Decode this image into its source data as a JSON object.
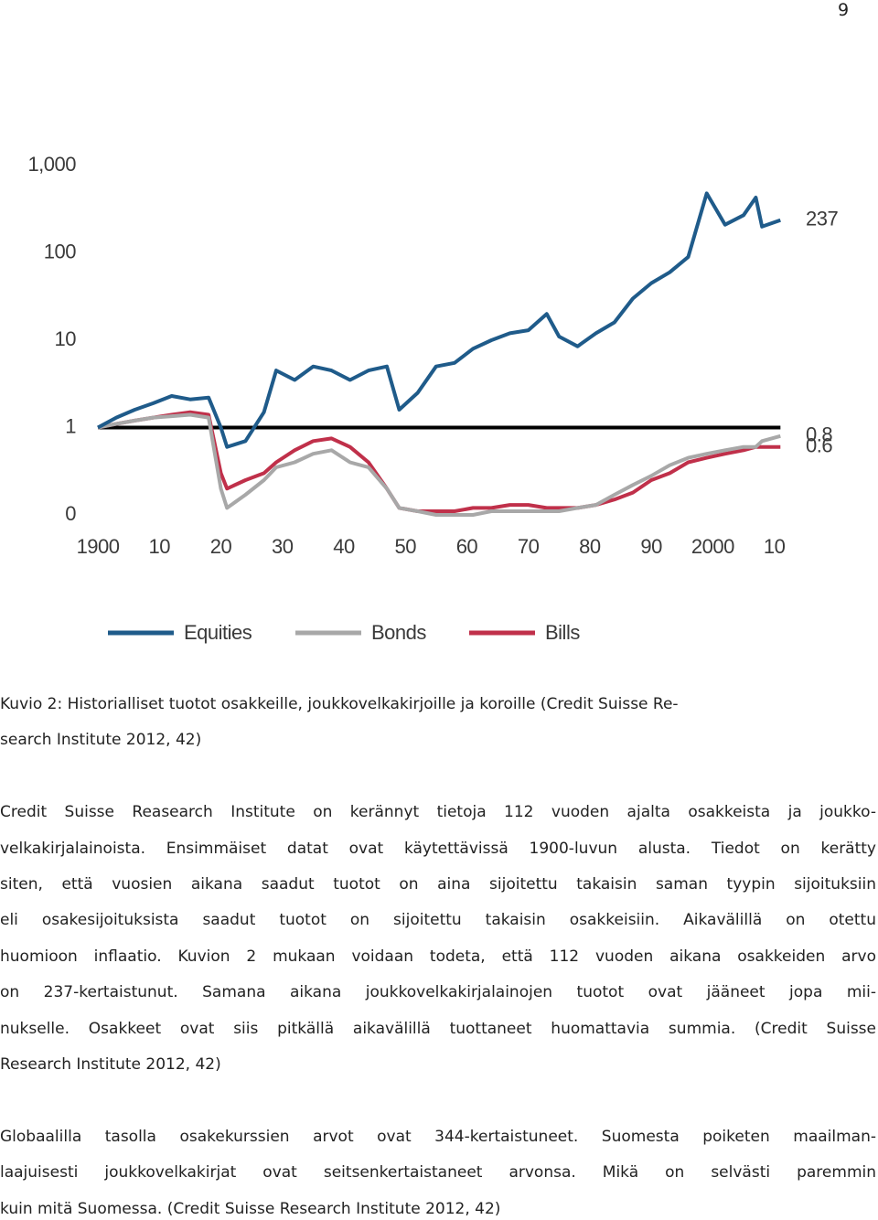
{
  "page_number": "9",
  "chart_data": {
    "type": "line",
    "log_scale": true,
    "grid": false,
    "legend": "bottom",
    "reference_line": 1,
    "x": [
      1900,
      1903,
      1906,
      1909,
      1912,
      1915,
      1918,
      1920,
      1921,
      1924,
      1927,
      1929,
      1932,
      1935,
      1938,
      1941,
      1944,
      1947,
      1949,
      1952,
      1955,
      1958,
      1961,
      1964,
      1967,
      1970,
      1973,
      1975,
      1978,
      1981,
      1984,
      1987,
      1990,
      1993,
      1996,
      1999,
      2002,
      2005,
      2007,
      2008,
      2011
    ],
    "xlim": [
      1898,
      2014
    ],
    "xticks": [
      1900,
      {
        "value": 1910,
        "label": "10"
      },
      {
        "value": 1920,
        "label": "20"
      },
      {
        "value": 1930,
        "label": "30"
      },
      {
        "value": 1940,
        "label": "40"
      },
      {
        "value": 1950,
        "label": "50"
      },
      {
        "value": 1960,
        "label": "60"
      },
      {
        "value": 1970,
        "label": "70"
      },
      {
        "value": 1980,
        "label": "80"
      },
      {
        "value": 1990,
        "label": "90"
      },
      2000,
      {
        "value": 2010,
        "label": "10"
      }
    ],
    "ylim": [
      0.1,
      1000
    ],
    "yticks": [
      {
        "value": 0.1,
        "label": "0"
      },
      1,
      10,
      100,
      {
        "value": 1000,
        "label": "1,000"
      }
    ],
    "series": [
      {
        "name": "Equities",
        "color": "#1f5b8a",
        "end_label": "237",
        "values": [
          1,
          1.3,
          1.6,
          1.9,
          2.3,
          2.1,
          2.2,
          1.0,
          0.6,
          0.7,
          1.5,
          4.5,
          3.5,
          5,
          4.5,
          3.5,
          4.5,
          5,
          1.6,
          2.5,
          5,
          5.5,
          8,
          10,
          12,
          13,
          20,
          11,
          8.5,
          12,
          16,
          30,
          45,
          60,
          90,
          480,
          210,
          270,
          430,
          200,
          237
        ]
      },
      {
        "name": "Bonds",
        "color": "#a8a8a8",
        "end_label": "0.8",
        "values": [
          1,
          1.1,
          1.2,
          1.3,
          1.35,
          1.4,
          1.3,
          0.2,
          0.12,
          0.17,
          0.25,
          0.35,
          0.4,
          0.5,
          0.55,
          0.4,
          0.35,
          0.2,
          0.12,
          0.11,
          0.1,
          0.1,
          0.1,
          0.11,
          0.11,
          0.11,
          0.11,
          0.11,
          0.12,
          0.13,
          0.17,
          0.22,
          0.28,
          0.37,
          0.45,
          0.5,
          0.55,
          0.6,
          0.6,
          0.7,
          0.8
        ]
      },
      {
        "name": "Bills",
        "color": "#c0304a",
        "end_label": "0.6",
        "values": [
          1,
          1.1,
          1.2,
          1.3,
          1.4,
          1.5,
          1.4,
          0.3,
          0.2,
          0.25,
          0.3,
          0.4,
          0.55,
          0.7,
          0.75,
          0.6,
          0.4,
          0.2,
          0.12,
          0.11,
          0.11,
          0.11,
          0.12,
          0.12,
          0.13,
          0.13,
          0.12,
          0.12,
          0.12,
          0.13,
          0.15,
          0.18,
          0.25,
          0.3,
          0.4,
          0.45,
          0.5,
          0.55,
          0.6,
          0.6,
          0.6
        ]
      }
    ]
  },
  "caption": [
    "Kuvio 2: Historialliset tuotot osakkeille, joukkovelkakirjoille ja koroille (Credit Suisse Re-",
    "search Institute 2012, 42)"
  ],
  "paragraphs": [
    [
      "Credit Suisse Reasearch Institute on kerännyt tietoja 112 vuoden ajalta osakkeista ja joukko-",
      "velkakirjalainoista. Ensimmäiset datat ovat käytettävissä 1900-luvun alusta. Tiedot on kerätty",
      "siten, että vuosien aikana saadut tuotot on aina sijoitettu takaisin saman tyypin sijoituksiin",
      "eli osakesijoituksista saadut tuotot on sijoitettu takaisin osakkeisiin. Aikavälillä on otettu",
      "huomioon inflaatio. Kuvion 2 mukaan voidaan todeta, että 112 vuoden aikana osakkeiden arvo",
      "on 237-kertaistunut. Samana aikana joukkovelkakirjalainojen tuotot ovat jääneet jopa mii-",
      "nukselle. Osakkeet ovat siis pitkällä aikavälillä tuottaneet huomattavia summia. (Credit Suisse",
      "Research Institute 2012, 42)"
    ],
    [
      "Globaalilla tasolla osakekurssien arvot ovat 344-kertaistuneet. Suomesta poiketen maailman-",
      "laajuisesti joukkovelkakirjat ovat seitsenkertaistaneet arvonsa. Mikä on selvästi paremmin",
      "kuin mitä Suomessa. (Credit Suisse Research Institute 2012, 42)"
    ]
  ]
}
